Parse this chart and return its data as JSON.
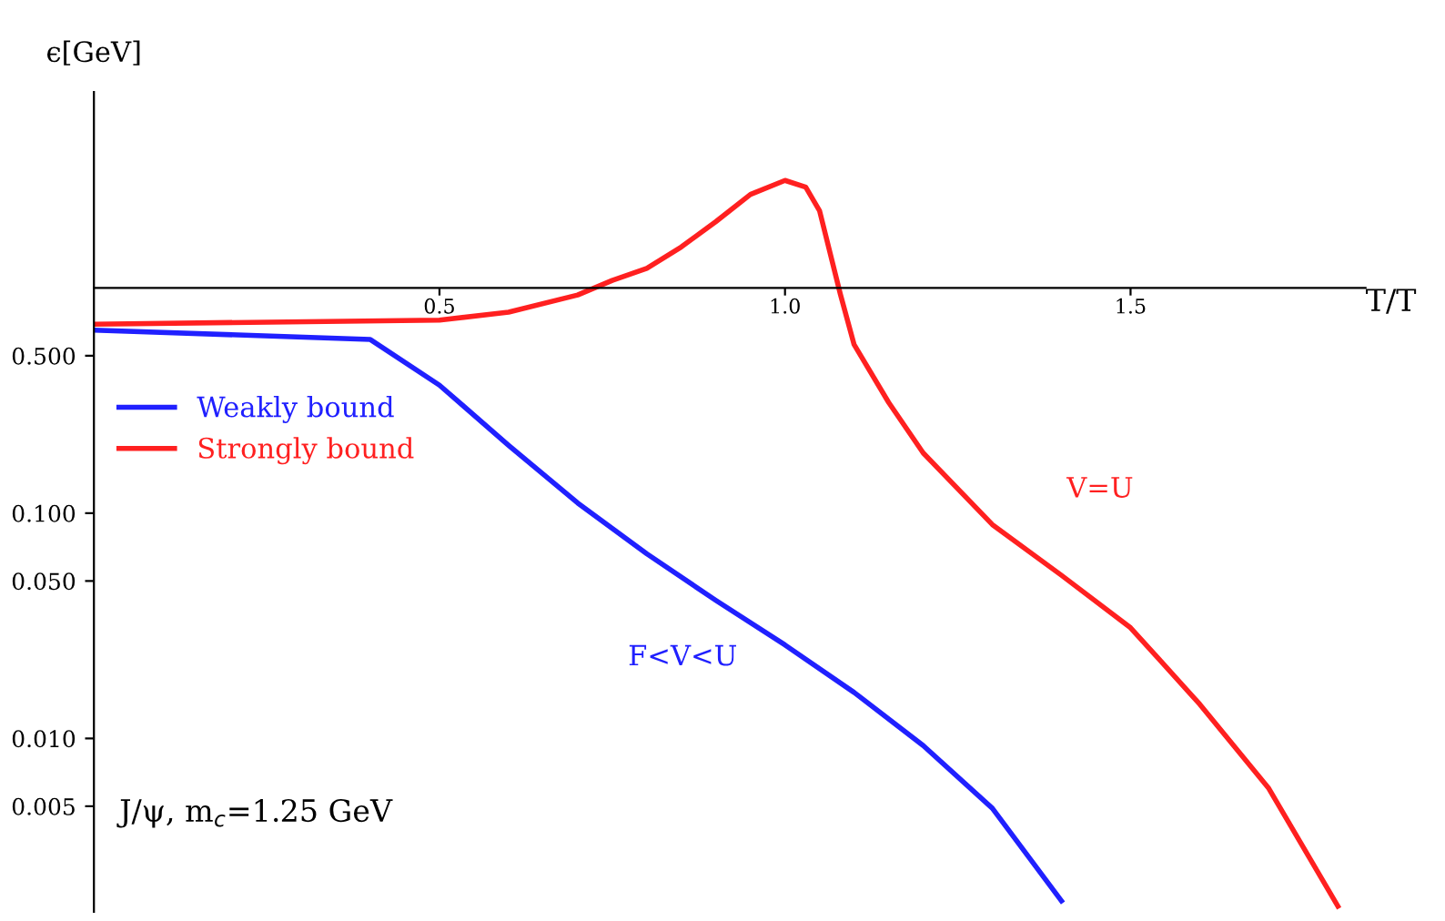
{
  "chart_data": {
    "type": "line",
    "xlabel": "T/T",
    "ylabel": "ϵ[GeV]",
    "log": "y",
    "grid": false,
    "legend": "top left",
    "marker": "none",
    "line_style": "solid",
    "xlim": [
      0,
      1.84
    ],
    "ylim": [
      0.0017,
      7.4
    ],
    "xticks": [
      {
        "value": 0.5,
        "label": "0.5"
      },
      {
        "value": 1.0,
        "label": "1.0"
      },
      {
        "value": 1.5,
        "label": "1.5"
      }
    ],
    "yticks": [
      {
        "value": 0.5,
        "label": "0.500"
      },
      {
        "value": 0.1,
        "label": "0.100"
      },
      {
        "value": 0.05,
        "label": "0.050"
      },
      {
        "value": 0.01,
        "label": "0.010"
      },
      {
        "value": 0.005,
        "label": "0.005"
      }
    ],
    "series": [
      {
        "name": "Weakly bound",
        "color": "#2020ff",
        "x": [
          0,
          0.4,
          0.5,
          0.6,
          0.7,
          0.8,
          0.9,
          1.0,
          1.1,
          1.2,
          1.3,
          1.4
        ],
        "values": [
          0.65,
          0.59,
          0.37,
          0.2,
          0.111,
          0.066,
          0.041,
          0.026,
          0.016,
          0.0093,
          0.0049,
          0.0019
        ]
      },
      {
        "name": "Strongly bound",
        "color": "#ff2020",
        "x": [
          0,
          0.5,
          0.6,
          0.7,
          0.75,
          0.8,
          0.85,
          0.9,
          0.95,
          1.0,
          1.03,
          1.05,
          1.08,
          1.1,
          1.15,
          1.2,
          1.3,
          1.4,
          1.5,
          1.6,
          1.7,
          1.8
        ],
        "values": [
          0.69,
          0.72,
          0.78,
          0.93,
          1.08,
          1.22,
          1.52,
          1.97,
          2.6,
          3.0,
          2.8,
          2.2,
          0.94,
          0.56,
          0.31,
          0.185,
          0.089,
          0.053,
          0.031,
          0.0142,
          0.006,
          0.0018
        ]
      }
    ],
    "annotations": [
      "F<V<U",
      "V=U",
      "J/ψ, m$_{c}$=1.25 GeV"
    ]
  }
}
